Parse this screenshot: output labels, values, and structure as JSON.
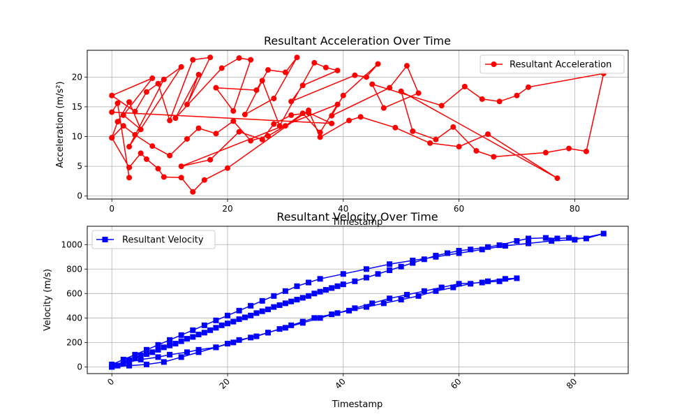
{
  "chart_data": [
    {
      "type": "line",
      "title": "Resultant Acceleration Over Time",
      "xlabel": "Timestamp",
      "ylabel": "Acceleration (m/s²)",
      "xlim": [
        -4.25,
        89.25
      ],
      "ylim": [
        -0.5,
        24.5
      ],
      "xticks": [
        0,
        20,
        40,
        60,
        80
      ],
      "yticks": [
        0,
        5,
        10,
        15,
        20
      ],
      "grid": true,
      "legend_position": "top-right",
      "series": [
        {
          "name": "Resultant Acceleration",
          "color": "#ff0000",
          "marker": "circle",
          "x": [
            0,
            1,
            3,
            5,
            2,
            7,
            0,
            4,
            6,
            9,
            3,
            12,
            8,
            10,
            14,
            17,
            13,
            15,
            11,
            19,
            22,
            24,
            21,
            18,
            25,
            27,
            30,
            32,
            28,
            23,
            26,
            29,
            35,
            37,
            39,
            33,
            31,
            42,
            44,
            46,
            40,
            38,
            48,
            51,
            53,
            47,
            45,
            57,
            61,
            64,
            67,
            70,
            72,
            85,
            82,
            79,
            75,
            66,
            63,
            59,
            56,
            52,
            50,
            77,
            65,
            60,
            55,
            49,
            43,
            41,
            36,
            34,
            20,
            16,
            14,
            12,
            9,
            8,
            6,
            5,
            3,
            0,
            2,
            4,
            7,
            10,
            13,
            15,
            18,
            21,
            24,
            27,
            30,
            33,
            36,
            39,
            12,
            17,
            22,
            26,
            28,
            31,
            34,
            38,
            0,
            1,
            3
          ],
          "y": [
            9.8,
            12.5,
            15.8,
            11.2,
            13.6,
            19.8,
            16.9,
            14.2,
            17.5,
            19.6,
            8.3,
            21.7,
            18.9,
            12.7,
            22.9,
            23.3,
            15.4,
            20.4,
            13.1,
            21.5,
            23.2,
            22.9,
            14.3,
            18.2,
            17.8,
            21.2,
            20.8,
            23.3,
            16.4,
            13.7,
            19.4,
            11.8,
            22.4,
            21.6,
            21.1,
            18.6,
            15.9,
            20.3,
            20.0,
            22.2,
            16.9,
            13.5,
            18.2,
            21.9,
            17.3,
            14.8,
            18.8,
            15.2,
            18.4,
            16.3,
            15.9,
            16.9,
            18.3,
            20.6,
            7.5,
            8.0,
            7.3,
            6.6,
            7.6,
            11.6,
            9.5,
            10.9,
            17.6,
            3.0,
            10.4,
            8.3,
            8.9,
            11.5,
            13.3,
            12.7,
            9.9,
            14.4,
            4.7,
            2.7,
            0.7,
            3.1,
            3.2,
            4.6,
            6.2,
            7.2,
            4.8,
            9.8,
            11.8,
            10.3,
            8.4,
            6.8,
            9.6,
            11.4,
            10.5,
            12.6,
            9.3,
            10.1,
            11.8,
            13.9,
            10.7,
            15.4,
            5.0,
            6.1,
            10.8,
            9.5,
            12.1,
            13.6,
            14.0,
            12.2,
            14.1,
            15.6,
            3.1
          ]
        }
      ]
    },
    {
      "type": "line",
      "title": "Resultant Velocity Over Time",
      "xlabel": "Timestamp",
      "ylabel": "Velocity (m/s)",
      "xlim": [
        -4.25,
        89.25
      ],
      "ylim": [
        -55,
        1150
      ],
      "xticks": [
        0,
        20,
        40,
        60,
        80
      ],
      "yticks": [
        0,
        200,
        400,
        600,
        800,
        1000
      ],
      "grid": true,
      "legend_position": "top-left",
      "series": [
        {
          "name": "Resultant Velocity",
          "color": "#0000ff",
          "marker": "square",
          "x": [
            0,
            1,
            2,
            3,
            4,
            5,
            6,
            7,
            8,
            9,
            10,
            11,
            12,
            13,
            14,
            15,
            16,
            17,
            18,
            19,
            20,
            21,
            22,
            23,
            24,
            25,
            26,
            27,
            28,
            29,
            30,
            31,
            32,
            33,
            34,
            35,
            36,
            37,
            38,
            39,
            40,
            42,
            44,
            46,
            48,
            50,
            52,
            54,
            56,
            58,
            60,
            62,
            65,
            67,
            70,
            72,
            75,
            77,
            79,
            82,
            85,
            80,
            76,
            72,
            68,
            64,
            60,
            56,
            52,
            48,
            44,
            40,
            36,
            34,
            32,
            30,
            28,
            26,
            24,
            22,
            20,
            18,
            16,
            14,
            12,
            10,
            8,
            6,
            4,
            2,
            0,
            3,
            5,
            8,
            10,
            13,
            15,
            18,
            20,
            22,
            25,
            27,
            29,
            31,
            33,
            35,
            38,
            41,
            44,
            47,
            50,
            53,
            56,
            59,
            62,
            65,
            68,
            70,
            67,
            64,
            60,
            57,
            54,
            51,
            48,
            45,
            42,
            39,
            36,
            33,
            30,
            27,
            24,
            21,
            18,
            15,
            12,
            9,
            6,
            3,
            0
          ],
          "y": [
            0,
            10,
            30,
            55,
            70,
            95,
            105,
            120,
            140,
            160,
            175,
            190,
            210,
            230,
            245,
            265,
            280,
            300,
            320,
            340,
            355,
            370,
            390,
            405,
            420,
            440,
            455,
            470,
            490,
            505,
            520,
            535,
            550,
            565,
            580,
            600,
            615,
            630,
            645,
            660,
            675,
            700,
            730,
            760,
            790,
            820,
            850,
            880,
            910,
            930,
            950,
            960,
            980,
            995,
            1030,
            1050,
            1055,
            1050,
            1055,
            1050,
            1090,
            1040,
            1030,
            1010,
            990,
            960,
            930,
            900,
            870,
            840,
            800,
            760,
            720,
            690,
            660,
            620,
            580,
            540,
            500,
            460,
            420,
            380,
            340,
            300,
            260,
            220,
            180,
            140,
            100,
            60,
            20,
            40,
            60,
            80,
            100,
            120,
            140,
            160,
            190,
            220,
            250,
            280,
            310,
            340,
            370,
            400,
            430,
            460,
            490,
            520,
            550,
            580,
            620,
            650,
            680,
            700,
            720,
            725,
            700,
            690,
            680,
            650,
            620,
            590,
            560,
            520,
            480,
            440,
            400,
            360,
            320,
            280,
            240,
            200,
            160,
            120,
            80,
            40,
            20,
            10,
            0
          ]
        }
      ]
    }
  ]
}
